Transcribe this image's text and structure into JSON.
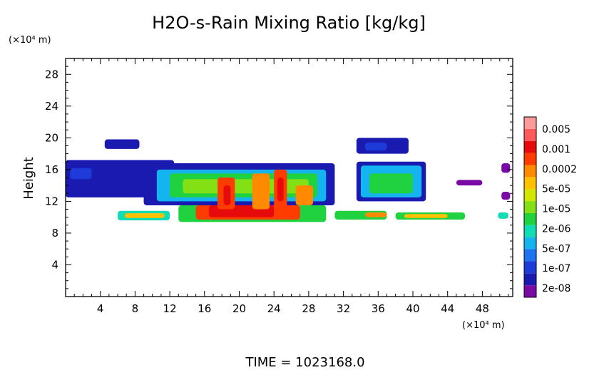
{
  "chart_data": {
    "type": "heatmap",
    "title": "H2O-s-Rain Mixing Ratio [kg/kg]",
    "ylabel": "Height",
    "y_unit": "(×10⁴ m)",
    "x_unit": "(×10⁴ m)",
    "footer": "TIME = 1023168.0",
    "xlim": [
      0,
      51.5
    ],
    "ylim": [
      0,
      30
    ],
    "x_ticks": [
      4,
      8,
      12,
      16,
      20,
      24,
      28,
      32,
      36,
      40,
      44,
      48
    ],
    "y_ticks": [
      4,
      8,
      12,
      16,
      20,
      24,
      28
    ],
    "legend_position": "right",
    "colorbar": {
      "colors": [
        "#7a0aa6",
        "#1a1ab0",
        "#1e3ad8",
        "#1e74f0",
        "#14b4f0",
        "#12dcb4",
        "#20d240",
        "#82e014",
        "#d2e600",
        "#ffc000",
        "#ff8a00",
        "#ff3c00",
        "#e60a0a",
        "#ff5a5a",
        "#ff9a9a"
      ],
      "labels": [
        "2e-08",
        "1e-07",
        "5e-07",
        "2e-06",
        "1e-05",
        "5e-05",
        "0.0002",
        "0.001",
        "0.005"
      ]
    },
    "regions": [
      {
        "x": [
          0,
          12.5
        ],
        "y": [
          12.5,
          17.2
        ],
        "level": 1
      },
      {
        "x": [
          4.5,
          8.5
        ],
        "y": [
          18.6,
          19.8
        ],
        "level": 1
      },
      {
        "x": [
          0.5,
          3
        ],
        "y": [
          14.8,
          16.2
        ],
        "level": 2
      },
      {
        "x": [
          9,
          31
        ],
        "y": [
          11.5,
          16.8
        ],
        "level": 1
      },
      {
        "x": [
          10.5,
          30
        ],
        "y": [
          12,
          16
        ],
        "level": 4
      },
      {
        "x": [
          12,
          29
        ],
        "y": [
          12.5,
          15.5
        ],
        "level": 6
      },
      {
        "x": [
          13.5,
          28
        ],
        "y": [
          13,
          14.8
        ],
        "level": 7
      },
      {
        "x": [
          6,
          12
        ],
        "y": [
          9.6,
          10.8
        ],
        "level": 5
      },
      {
        "x": [
          6.8,
          11.4
        ],
        "y": [
          9.9,
          10.5
        ],
        "level": 9
      },
      {
        "x": [
          13,
          30
        ],
        "y": [
          9.4,
          11.5
        ],
        "level": 6
      },
      {
        "x": [
          15,
          27
        ],
        "y": [
          9.7,
          11.5
        ],
        "level": 11
      },
      {
        "x": [
          16.5,
          24
        ],
        "y": [
          10,
          11.5
        ],
        "level": 12
      },
      {
        "x": [
          17.5,
          19.5
        ],
        "y": [
          11,
          15
        ],
        "level": 11
      },
      {
        "x": [
          18.2,
          19
        ],
        "y": [
          11.5,
          14
        ],
        "level": 12
      },
      {
        "x": [
          21.5,
          23.5
        ],
        "y": [
          11,
          15.5
        ],
        "level": 10
      },
      {
        "x": [
          24,
          25.5
        ],
        "y": [
          11,
          16
        ],
        "level": 11
      },
      {
        "x": [
          24.4,
          25.1
        ],
        "y": [
          12,
          15
        ],
        "level": 12
      },
      {
        "x": [
          26.5,
          28.5
        ],
        "y": [
          11.5,
          14
        ],
        "level": 10
      },
      {
        "x": [
          31,
          37
        ],
        "y": [
          9.7,
          10.8
        ],
        "level": 6
      },
      {
        "x": [
          34.5,
          37
        ],
        "y": [
          10,
          10.6
        ],
        "level": 10
      },
      {
        "x": [
          33.5,
          39.5
        ],
        "y": [
          18,
          20
        ],
        "level": 1
      },
      {
        "x": [
          34.5,
          37
        ],
        "y": [
          18.4,
          19.4
        ],
        "level": 2
      },
      {
        "x": [
          33.5,
          41.5
        ],
        "y": [
          12,
          17
        ],
        "level": 1
      },
      {
        "x": [
          34,
          41
        ],
        "y": [
          12.5,
          16.5
        ],
        "level": 4
      },
      {
        "x": [
          35,
          40
        ],
        "y": [
          13,
          15.5
        ],
        "level": 6
      },
      {
        "x": [
          38,
          46
        ],
        "y": [
          9.7,
          10.6
        ],
        "level": 6
      },
      {
        "x": [
          39,
          44
        ],
        "y": [
          9.9,
          10.4
        ],
        "level": 9
      },
      {
        "x": [
          49.8,
          51
        ],
        "y": [
          9.8,
          10.6
        ],
        "level": 5
      },
      {
        "x": [
          45,
          48
        ],
        "y": [
          14,
          14.7
        ],
        "level": 0
      },
      {
        "x": [
          50.2,
          51.2
        ],
        "y": [
          12.2,
          13.2
        ],
        "level": 0
      },
      {
        "x": [
          50.2,
          51.2
        ],
        "y": [
          15.6,
          16.8
        ],
        "level": 0
      }
    ]
  }
}
